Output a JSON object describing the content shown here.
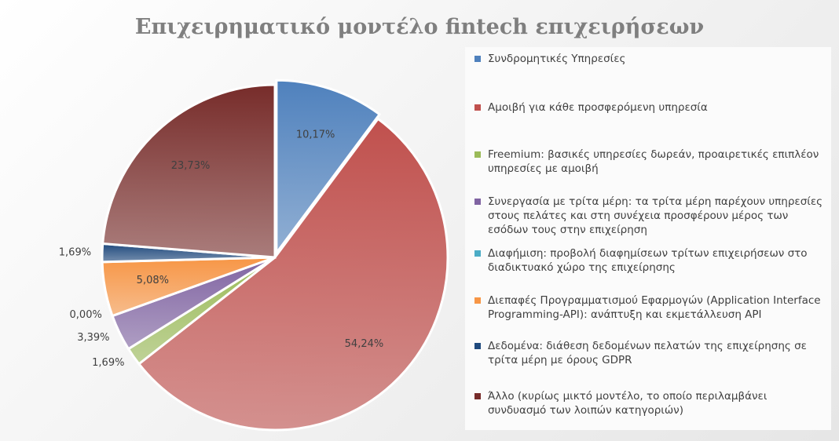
{
  "chart_data": {
    "type": "pie",
    "title": "Επιχειρηματικό μοντέλο fintech επιχειρήσεων",
    "categories": [
      "Συνδρομητικές Υπηρεσίες",
      "Αμοιβή για κάθε προσφερόμενη υπηρεσία",
      "Freemium: βασικές υπηρεσίες δωρεάν, προαιρετικές επιπλέον υπηρεσίες με αμοιβή",
      "Συνεργασία με τρίτα μέρη: τα τρίτα μέρη παρέχουν υπηρεσίες στους πελάτες και στη συνέχεια προσφέρουν μέρος των εσόδων τους στην επιχείρηση",
      "Διαφήμιση: προβολή διαφημίσεων τρίτων επιχειρήσεων στο διαδικτυακό χώρο της επιχείρησης",
      "Διεπαφές Προγραμματισμού Εφαρμογών (Application Interface Programming-API): ανάπτυξη και εκμετάλλευση API",
      "Δεδομένα: διάθεση δεδομένων πελατών της επιχείρησης σε τρίτα μέρη με όρους GDPR",
      "Άλλο (κυρίως μικτό μοντέλο, το οποίο περιλαμβάνει συνδυασμό των λοιπών κατηγοριών)"
    ],
    "values": [
      10.17,
      54.24,
      1.69,
      3.39,
      0,
      5.08,
      1.69,
      23.73
    ],
    "value_labels": [
      "10,17%",
      "54,24%",
      "1,69%",
      "3,39%",
      "0,00%",
      "5,08%",
      "1,69%",
      "23,73%"
    ],
    "colors": [
      "#4f81bd",
      "#c0504d",
      "#9bbb59",
      "#8064a2",
      "#4bacc6",
      "#f79646",
      "#1f497d",
      "#772c2a"
    ],
    "legend": "right"
  }
}
